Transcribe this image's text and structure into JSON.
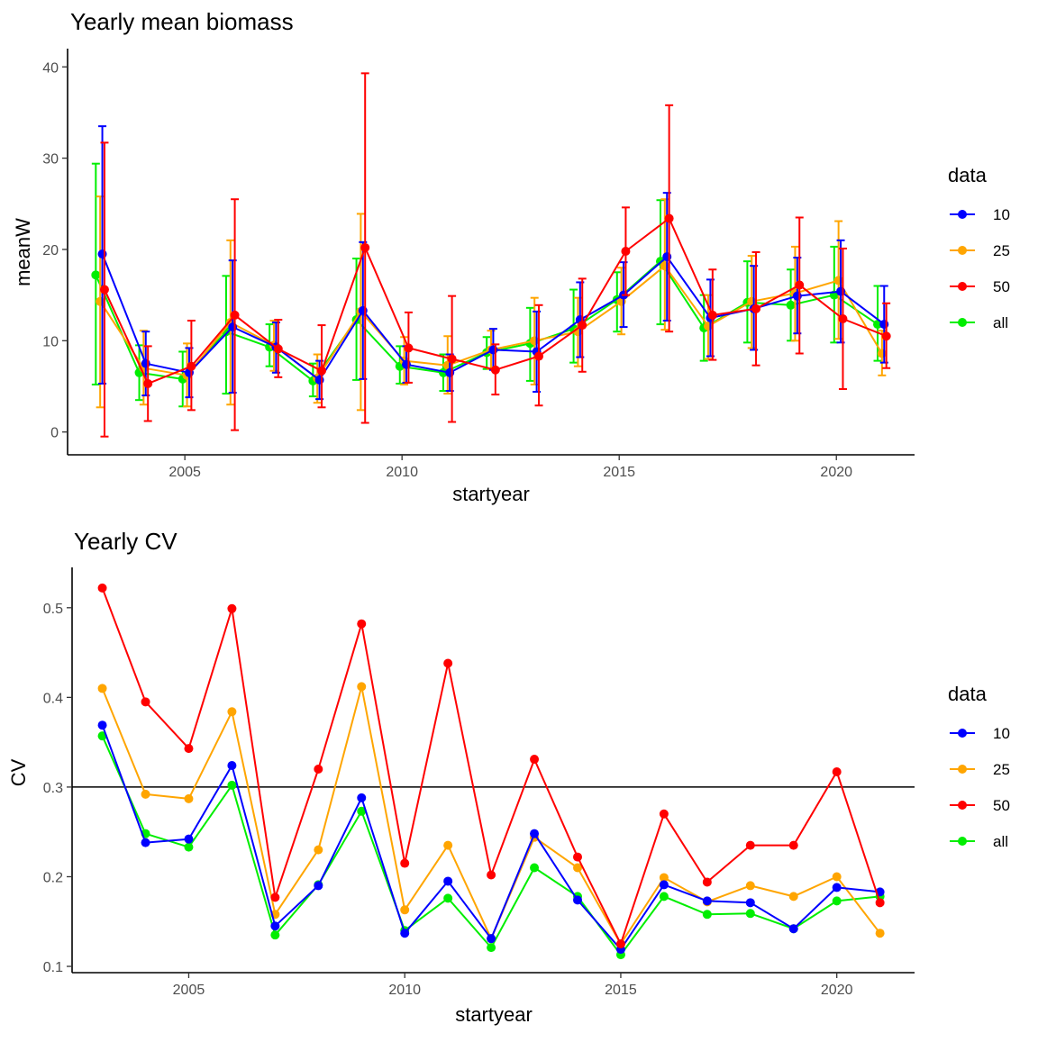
{
  "chart_data": [
    {
      "type": "line",
      "title": "Yearly mean biomass",
      "xlabel": "startyear",
      "ylabel": "meanW",
      "xlim": [
        2002.3,
        2021.8
      ],
      "ylim": [
        -2.5,
        42
      ],
      "xticks": [
        2005,
        2010,
        2015,
        2020
      ],
      "xtick_labels": [
        "2005",
        "2010",
        "2015",
        "2020"
      ],
      "yticks": [
        0,
        10,
        20,
        30,
        40
      ],
      "ytick_labels": [
        "0",
        "10",
        "20",
        "30",
        "40"
      ],
      "legend": {
        "title": "data",
        "position": "right"
      },
      "error_bars": true,
      "x": [
        2003,
        2004,
        2005,
        2006,
        2007,
        2008,
        2009,
        2010,
        2011,
        2012,
        2013,
        2014,
        2015,
        2016,
        2017,
        2018,
        2019,
        2020,
        2021
      ],
      "series": [
        {
          "name": "10",
          "color": "#0000ff",
          "dodge": 0.1,
          "values": [
            19.5,
            7.5,
            6.5,
            11.5,
            9.3,
            5.7,
            13.3,
            7.4,
            6.5,
            9.0,
            8.8,
            12.3,
            15.0,
            19.2,
            12.5,
            13.5,
            14.9,
            15.4,
            11.8
          ],
          "lower": [
            5.3,
            4.0,
            3.8,
            4.3,
            6.5,
            3.6,
            5.8,
            5.4,
            4.5,
            6.8,
            4.4,
            8.2,
            11.5,
            12.2,
            8.3,
            9.0,
            10.8,
            9.8,
            7.6
          ],
          "upper": [
            33.5,
            11.0,
            9.2,
            18.8,
            12.0,
            7.8,
            20.8,
            9.4,
            8.5,
            11.3,
            13.2,
            16.4,
            18.6,
            26.2,
            16.7,
            18.2,
            19.1,
            21.0,
            16.0
          ]
        },
        {
          "name": "25",
          "color": "#ffa500",
          "dodge": 0.05,
          "values": [
            14.3,
            7.0,
            6.2,
            12.0,
            9.5,
            5.9,
            13.2,
            7.8,
            7.3,
            9.0,
            10.0,
            11.0,
            14.3,
            18.2,
            11.6,
            14.3,
            15.2,
            16.6,
            8.6
          ],
          "lower": [
            2.7,
            3.0,
            2.8,
            3.0,
            6.7,
            3.2,
            2.4,
            5.2,
            4.2,
            6.9,
            5.2,
            7.2,
            10.7,
            11.2,
            8.0,
            9.2,
            10.0,
            10.2,
            6.2
          ],
          "upper": [
            25.8,
            11.1,
            9.7,
            21.0,
            12.2,
            8.5,
            23.9,
            10.4,
            10.5,
            11.1,
            14.7,
            14.7,
            18.0,
            25.5,
            15.0,
            19.3,
            20.3,
            23.1,
            11.1
          ]
        },
        {
          "name": "50",
          "color": "#ff0000",
          "dodge": 0.15,
          "values": [
            15.6,
            5.3,
            7.2,
            12.8,
            9.1,
            6.7,
            20.2,
            9.2,
            8.0,
            6.8,
            8.3,
            11.7,
            19.8,
            23.4,
            12.8,
            13.5,
            16.1,
            12.4,
            10.5
          ],
          "lower": [
            -0.5,
            1.2,
            2.4,
            0.2,
            6.0,
            2.7,
            1.0,
            5.4,
            1.1,
            4.1,
            2.9,
            6.6,
            15.0,
            11.0,
            7.9,
            7.3,
            8.6,
            4.7,
            7.0
          ],
          "upper": [
            31.7,
            9.4,
            12.2,
            25.5,
            12.3,
            11.7,
            39.3,
            13.1,
            14.9,
            9.6,
            13.9,
            16.8,
            24.6,
            35.8,
            17.8,
            19.7,
            23.5,
            20.1,
            14.1
          ]
        },
        {
          "name": "all",
          "color": "#00ee00",
          "dodge": -0.05,
          "values": [
            17.2,
            6.5,
            5.8,
            11.0,
            9.3,
            5.6,
            12.3,
            7.2,
            6.5,
            8.7,
            9.7,
            11.3,
            14.5,
            18.7,
            11.4,
            14.2,
            13.9,
            15.0,
            11.8
          ],
          "lower": [
            5.2,
            3.5,
            2.8,
            4.2,
            7.2,
            3.9,
            5.7,
            5.3,
            4.5,
            6.9,
            5.6,
            7.6,
            11.0,
            11.8,
            7.8,
            9.8,
            10.0,
            9.8,
            7.8
          ],
          "upper": [
            29.4,
            9.5,
            8.8,
            17.1,
            11.8,
            7.5,
            19.0,
            9.4,
            8.5,
            10.4,
            13.6,
            15.6,
            17.5,
            25.4,
            15.0,
            18.7,
            17.8,
            20.3,
            16.0
          ]
        }
      ]
    },
    {
      "type": "line",
      "title": "Yearly CV",
      "xlabel": "startyear",
      "ylabel": "CV",
      "xlim": [
        2002.3,
        2021.8
      ],
      "ylim": [
        0.093,
        0.545
      ],
      "xticks": [
        2005,
        2010,
        2015,
        2020
      ],
      "xtick_labels": [
        "2005",
        "2010",
        "2015",
        "2020"
      ],
      "yticks": [
        0.1,
        0.2,
        0.3,
        0.4,
        0.5
      ],
      "ytick_labels": [
        "0.1",
        "0.2",
        "0.3",
        "0.4",
        "0.5"
      ],
      "hline": 0.3,
      "legend": {
        "title": "data",
        "position": "right"
      },
      "x": [
        2003,
        2004,
        2005,
        2006,
        2007,
        2008,
        2009,
        2010,
        2011,
        2012,
        2013,
        2014,
        2015,
        2016,
        2017,
        2018,
        2019,
        2020,
        2021
      ],
      "series": [
        {
          "name": "10",
          "color": "#0000ff",
          "values": [
            0.369,
            0.238,
            0.242,
            0.324,
            0.145,
            0.19,
            0.288,
            0.137,
            0.195,
            0.131,
            0.248,
            0.174,
            0.119,
            0.191,
            0.173,
            0.171,
            0.142,
            0.188,
            0.183
          ]
        },
        {
          "name": "25",
          "color": "#ffa500",
          "values": [
            0.41,
            0.292,
            0.287,
            0.384,
            0.158,
            0.23,
            0.412,
            0.163,
            0.235,
            0.131,
            0.244,
            0.21,
            0.125,
            0.199,
            0.172,
            0.19,
            0.178,
            0.2,
            0.137
          ]
        },
        {
          "name": "50",
          "color": "#ff0000",
          "values": [
            0.522,
            0.395,
            0.343,
            0.499,
            0.177,
            0.32,
            0.482,
            0.215,
            0.438,
            0.202,
            0.331,
            0.222,
            0.125,
            0.27,
            0.194,
            0.235,
            0.235,
            0.317,
            0.171
          ]
        },
        {
          "name": "all",
          "color": "#00ee00",
          "values": [
            0.357,
            0.248,
            0.233,
            0.302,
            0.135,
            0.191,
            0.273,
            0.14,
            0.176,
            0.121,
            0.21,
            0.178,
            0.113,
            0.178,
            0.158,
            0.159,
            0.142,
            0.173,
            0.178
          ]
        }
      ]
    }
  ]
}
